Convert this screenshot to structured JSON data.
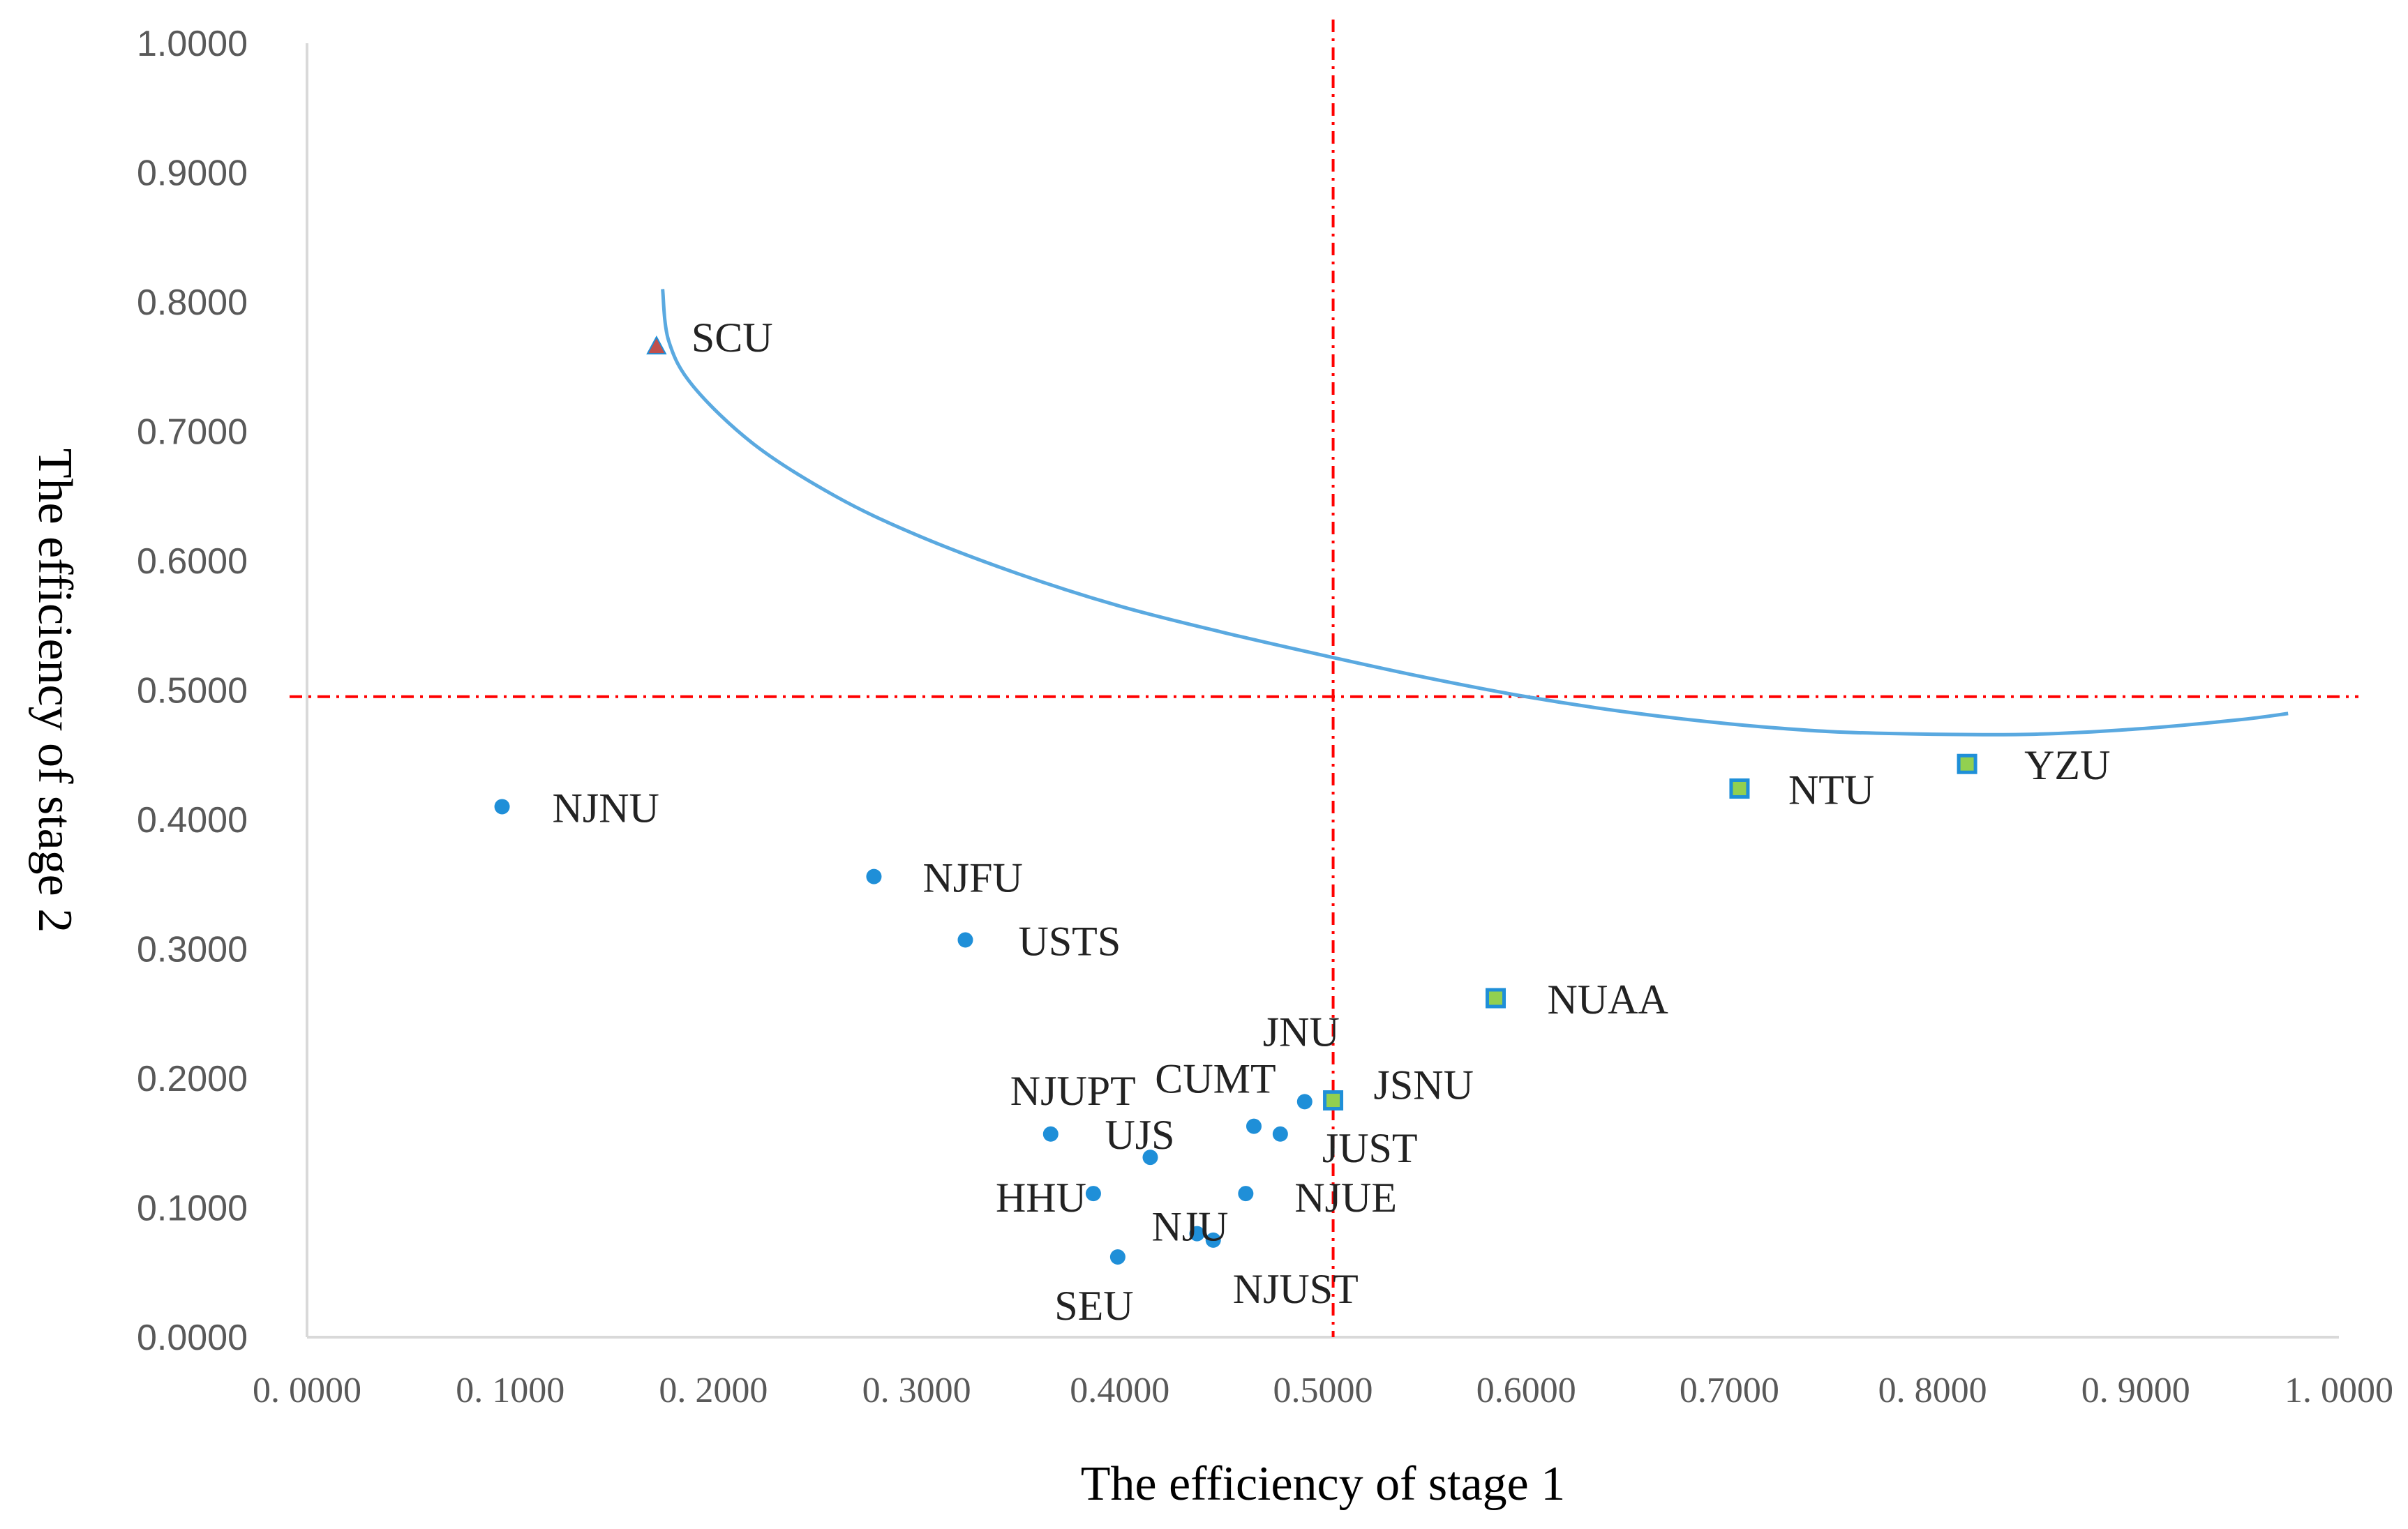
{
  "chart_data": {
    "type": "scatter",
    "title": "",
    "xlabel": "The efficiency of stage 1",
    "ylabel": "The efficiency of stage 2",
    "xlim": [
      0,
      1
    ],
    "ylim": [
      0,
      1
    ],
    "x_ticks": [
      "0. 0000",
      "0. 1000",
      "0. 2000",
      "0. 3000",
      "0.4000",
      "0.5000",
      "0.6000",
      "0.7000",
      "0. 8000",
      "0. 9000",
      "1. 0000"
    ],
    "y_ticks": [
      "0.0000",
      "0.1000",
      "0.2000",
      "0.3000",
      "0.4000",
      "0.5000",
      "0.6000",
      "0.7000",
      "0.8000",
      "0.9000",
      "1.0000"
    ],
    "grid": false,
    "legend": "none",
    "colors": {
      "circle": "#1f8fd8",
      "square_fill": "#92d050",
      "square_edge": "#1f8fd8",
      "triangle": "#c0504d",
      "reference": "#ff0000",
      "curve": "#5aa9e0",
      "axis": "#d9d9d9"
    },
    "reference_lines": {
      "x": 0.505,
      "y": 0.495
    },
    "curve": {
      "x": [
        0.175,
        0.178,
        0.19,
        0.22,
        0.26,
        0.3,
        0.35,
        0.4,
        0.45,
        0.5,
        0.55,
        0.6,
        0.65,
        0.7,
        0.75,
        0.8,
        0.85,
        0.9,
        0.95,
        0.975
      ],
      "y": [
        0.81,
        0.77,
        0.735,
        0.69,
        0.65,
        0.62,
        0.59,
        0.565,
        0.545,
        0.527,
        0.51,
        0.495,
        0.483,
        0.474,
        0.468,
        0.466,
        0.466,
        0.47,
        0.477,
        0.482
      ]
    },
    "points": [
      {
        "label": "SCU",
        "x": 0.172,
        "y": 0.766,
        "marker": "triangle"
      },
      {
        "label": "NJNU",
        "x": 0.096,
        "y": 0.41,
        "marker": "circle"
      },
      {
        "label": "NJFU",
        "x": 0.279,
        "y": 0.356,
        "marker": "circle"
      },
      {
        "label": "USTS",
        "x": 0.324,
        "y": 0.307,
        "marker": "circle"
      },
      {
        "label": "NTU",
        "x": 0.705,
        "y": 0.424,
        "marker": "square"
      },
      {
        "label": "YZU",
        "x": 0.817,
        "y": 0.443,
        "marker": "square"
      },
      {
        "label": "NUAA",
        "x": 0.585,
        "y": 0.262,
        "marker": "square"
      },
      {
        "label": "JSNU",
        "x": 0.505,
        "y": 0.183,
        "marker": "square"
      },
      {
        "label": "JNU",
        "x": 0.491,
        "y": 0.182,
        "marker": "circle"
      },
      {
        "label": "CUMT",
        "x": 0.466,
        "y": 0.163,
        "marker": "circle"
      },
      {
        "label": "JUST",
        "x": 0.479,
        "y": 0.157,
        "marker": "circle"
      },
      {
        "label": "NJUPT",
        "x": 0.366,
        "y": 0.157,
        "marker": "circle"
      },
      {
        "label": "UJS",
        "x": 0.415,
        "y": 0.139,
        "marker": "circle"
      },
      {
        "label": "HHU",
        "x": 0.387,
        "y": 0.111,
        "marker": "circle"
      },
      {
        "label": "NJUE",
        "x": 0.462,
        "y": 0.111,
        "marker": "circle"
      },
      {
        "label": "NJU",
        "x": 0.438,
        "y": 0.08,
        "marker": "circle"
      },
      {
        "label": "NJUST",
        "x": 0.446,
        "y": 0.075,
        "marker": "circle"
      },
      {
        "label": "SEU",
        "x": 0.399,
        "y": 0.062,
        "marker": "circle"
      }
    ]
  }
}
